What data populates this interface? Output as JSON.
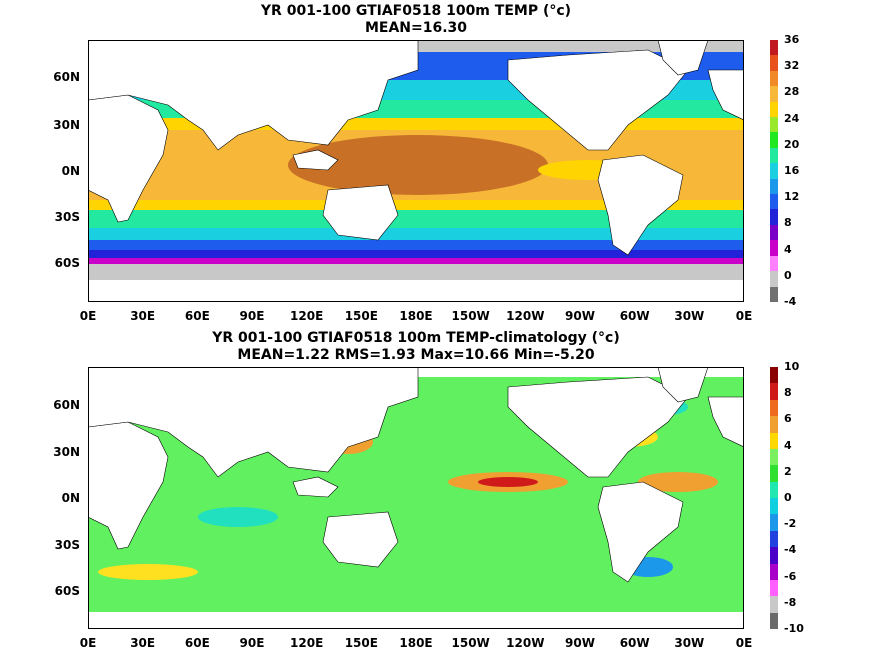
{
  "panels": [
    {
      "title_line1": "YR 001-100 GTIAF0518 100m TEMP (°c)",
      "title_line2": "MEAN=16.30",
      "colorbar_labels": [
        "36",
        "32",
        "28",
        "24",
        "20",
        "16",
        "12",
        "8",
        "4",
        "0",
        "-4"
      ],
      "colorbar_colors": [
        "#c0181e",
        "#e8501c",
        "#f08a26",
        "#f7b83a",
        "#ffd400",
        "#9ae82a",
        "#21e821",
        "#22e8a0",
        "#1ad0e0",
        "#1c98ea",
        "#1e5cee",
        "#2222d8",
        "#7a00c8",
        "#c800c8",
        "#ff80ff",
        "#c8c8c8",
        "#707070"
      ],
      "map_colors": {
        "warm": "#c87026",
        "orange": "#f0a030",
        "yellow": "#ffd800",
        "green": "#20e820",
        "cyan": "#20d0e0",
        "blue": "#2060f0",
        "navy": "#2020d0",
        "magenta": "#c800c8",
        "ice": "#c8c8c8"
      }
    },
    {
      "title_line1": "YR 001-100 GTIAF0518 100m TEMP-climatology (°c)",
      "title_line2": "MEAN=1.22   RMS=1.93   Max=10.66   Min=-5.20",
      "colorbar_labels": [
        "10",
        "8",
        "6",
        "4",
        "2",
        "0",
        "-2",
        "-4",
        "-6",
        "-8",
        "-10"
      ],
      "colorbar_colors": [
        "#8a0000",
        "#d01a1a",
        "#ee6a20",
        "#f0a030",
        "#ffd800",
        "#7af060",
        "#30e030",
        "#20e8b0",
        "#10d0e0",
        "#1c98ea",
        "#2040e0",
        "#4a00c8",
        "#a800c8",
        "#ff60ff",
        "#c8c8c8",
        "#6a6a6a"
      ],
      "map_colors": {
        "base": "#60f060",
        "yellow": "#ffe020",
        "orange": "#f0a030",
        "red": "#d01a1a",
        "cyan": "#20e0c0",
        "blue": "#1c98ea"
      }
    }
  ],
  "x_ticks": [
    "0E",
    "30E",
    "60E",
    "90E",
    "120E",
    "150E",
    "180E",
    "150W",
    "120W",
    "90W",
    "60W",
    "30W",
    "0E"
  ],
  "y_ticks": [
    "60N",
    "30N",
    "0N",
    "30S",
    "60S"
  ]
}
